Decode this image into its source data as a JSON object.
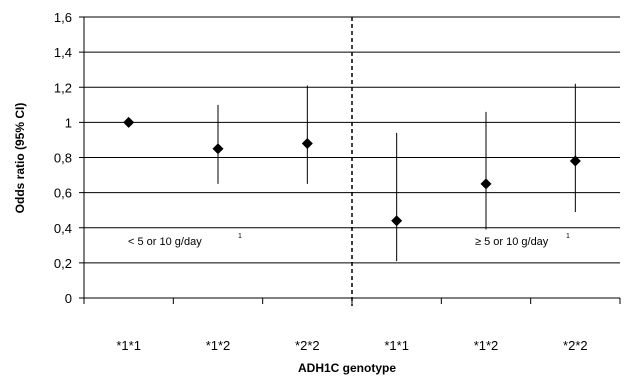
{
  "chart_data": {
    "type": "scatter",
    "title": "",
    "xlabel": "ADH1C genotype",
    "ylabel": "Odds ratio (95% CI)",
    "ylim": [
      0,
      1.6
    ],
    "yticks": [
      "0",
      "0,2",
      "0,4",
      "0,6",
      "0,8",
      "1",
      "1,2",
      "1,4",
      "1,6"
    ],
    "categories": [
      "*1*1",
      "*1*2",
      "*2*2",
      "*1*1",
      "*1*2",
      "*2*2"
    ],
    "points": [
      {
        "category": "*1*1",
        "or": 1.0,
        "lower": 1.0,
        "upper": 1.0
      },
      {
        "category": "*1*2",
        "or": 0.85,
        "lower": 0.65,
        "upper": 1.1
      },
      {
        "category": "*2*2",
        "or": 0.88,
        "lower": 0.65,
        "upper": 1.21
      },
      {
        "category": "*1*1",
        "or": 0.44,
        "lower": 0.21,
        "upper": 0.94
      },
      {
        "category": "*1*2",
        "or": 0.65,
        "lower": 0.39,
        "upper": 1.06
      },
      {
        "category": "*2*2",
        "or": 0.78,
        "lower": 0.49,
        "upper": 1.22
      }
    ],
    "groups": [
      {
        "label": "< 5 or 10 g/day",
        "superscript": "1"
      },
      {
        "label": "≥ 5 or 10 g/day",
        "superscript": "1"
      }
    ],
    "grid": true,
    "divider": "dashed vertical line between the two groups"
  }
}
